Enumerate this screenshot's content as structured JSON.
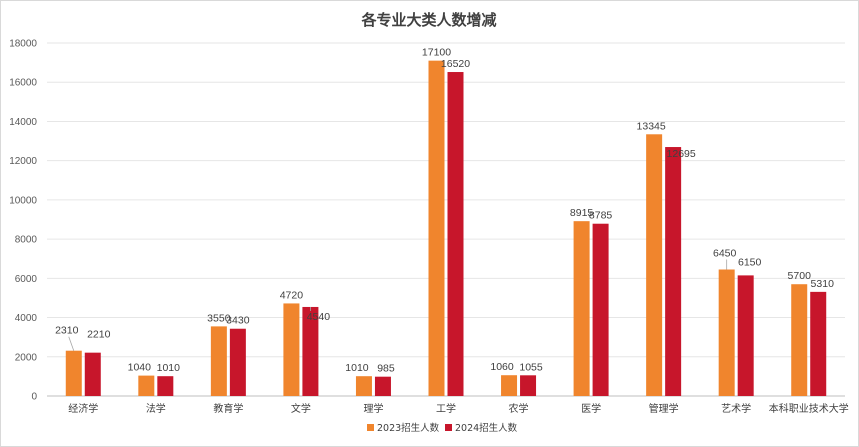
{
  "chart_data": {
    "type": "bar",
    "title": "各专业大类人数增减",
    "categories": [
      "经济学",
      "法学",
      "教育学",
      "文学",
      "理学",
      "工学",
      "农学",
      "医学",
      "管理学",
      "艺术学",
      "本科职业技术大学"
    ],
    "series": [
      {
        "name": "2023招生人数",
        "color": "#F0852D",
        "values": [
          2310,
          1040,
          3550,
          4720,
          1010,
          17100,
          1060,
          8915,
          13345,
          6450,
          5700
        ]
      },
      {
        "name": "2024招生人数",
        "color": "#C7162B",
        "values": [
          2210,
          1010,
          3430,
          4540,
          985,
          16520,
          1055,
          8785,
          12695,
          6150,
          5310
        ]
      }
    ],
    "ylim": [
      0,
      18000
    ],
    "yticks": [
      0,
      2000,
      4000,
      6000,
      8000,
      10000,
      12000,
      14000,
      16000,
      18000
    ],
    "xlabel": "",
    "ylabel": "",
    "grid": true,
    "legend_position": "bottom",
    "colors": {
      "gridline": "#e6e6e6",
      "axis": "#bfbfbf",
      "leader": "#a6a6a6"
    }
  }
}
